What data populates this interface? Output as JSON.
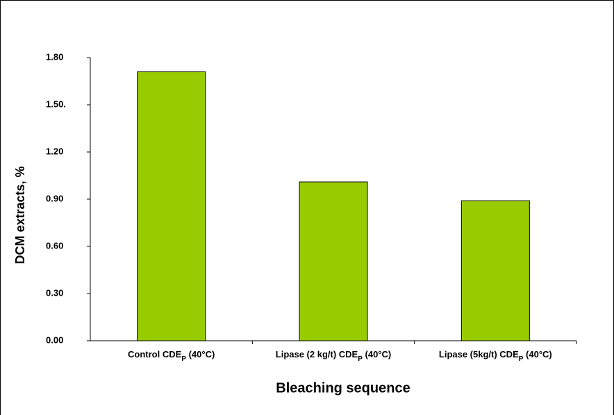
{
  "chart_data": {
    "type": "bar",
    "y_label": "DCM extracts, %",
    "x_label": "Bleaching sequence",
    "categories": [
      [
        "Control CDE",
        "P",
        " (40°C)"
      ],
      [
        "Lipase (2 kg/t) CDE",
        "P",
        " (40°C)"
      ],
      [
        "Lipase (5kg/t) CDE",
        "P",
        " (40°C)"
      ]
    ],
    "values": [
      1.71,
      1.01,
      0.89
    ],
    "color": "#99cc00",
    "ylim": [
      0,
      1.8
    ],
    "yticks": [
      {
        "value": 0,
        "label": "0.00"
      },
      {
        "value": 0.3,
        "label": "0.30"
      },
      {
        "value": 0.6,
        "label": "0.60"
      },
      {
        "value": 0.9,
        "label": "0.90"
      },
      {
        "value": 1.2,
        "label": "1.20"
      },
      {
        "value": 1.5,
        "label": "1.50."
      },
      {
        "value": 1.8,
        "label": "1.80"
      }
    ],
    "grid": false
  }
}
